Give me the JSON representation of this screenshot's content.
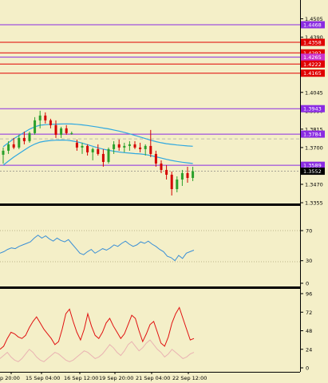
{
  "colors": {
    "background": "#f4efc8",
    "axis": "#000000",
    "bull": "#2aa02a",
    "bear": "#d40000",
    "envelope": "#2fa8e0",
    "oscillator1": "#3a8fd6",
    "oscillator2": "#e01010",
    "oscillator2_faint": "#e9b2b2"
  },
  "price_axis": {
    "ticks": [
      "1.4505",
      "1.4390",
      "1.4275",
      "1.4160",
      "1.4045",
      "1.3930",
      "1.3815",
      "1.3700",
      "1.3585",
      "1.3470",
      "1.3355"
    ],
    "levels": [
      {
        "label": "1.4468",
        "value": 1.4468,
        "color": "#8a2be2",
        "badge": "#8a2be2"
      },
      {
        "label": "1.4358",
        "value": 1.4358,
        "color": "#e00000",
        "badge": "#e00000"
      },
      {
        "label": "1.4292",
        "value": 1.4292,
        "color": "#e00000",
        "badge": "#e00000"
      },
      {
        "label": "1.4265",
        "value": 1.4265,
        "color": "#8a2be2",
        "badge": "#cc33cc"
      },
      {
        "label": "1.4222",
        "value": 1.4222,
        "color": "#e00000",
        "badge": "#e00000"
      },
      {
        "label": "1.4165",
        "value": 1.4165,
        "color": "#e00000",
        "badge": "#e00000"
      },
      {
        "label": "1.3943",
        "value": 1.3943,
        "color": "#8a2be2",
        "badge": "#8a2be2"
      },
      {
        "label": "1.3784",
        "value": 1.3784,
        "color": "#8a2be2",
        "badge": "#8a2be2"
      },
      {
        "label": "1.3589",
        "value": 1.3589,
        "color": "#8a2be2",
        "badge": "#8a2be2"
      },
      {
        "label": "1.3552",
        "value": 1.3552,
        "color": "#000000",
        "badge": "#000000"
      }
    ]
  },
  "osc1_axis": {
    "ticks": [
      "70",
      "30",
      "0"
    ]
  },
  "osc2_axis": {
    "ticks": [
      "96",
      "72",
      "48",
      "24",
      "0"
    ]
  },
  "time_axis": {
    "labels": [
      "p 20:00",
      "15 Sep 04:00",
      "16 Sep 12:00",
      "19 Sep 20:00",
      "21 Sep 04:00",
      "22 Sep 12:00"
    ]
  },
  "chart_data": {
    "type": "candlestick",
    "instrument_panel": {
      "candles": [
        {
          "o": 1.3655,
          "h": 1.37,
          "l": 1.36,
          "c": 1.368
        },
        {
          "o": 1.368,
          "h": 1.374,
          "l": 1.366,
          "c": 1.372
        },
        {
          "o": 1.372,
          "h": 1.376,
          "l": 1.369,
          "c": 1.37
        },
        {
          "o": 1.37,
          "h": 1.378,
          "l": 1.369,
          "c": 1.376
        },
        {
          "o": 1.376,
          "h": 1.38,
          "l": 1.372,
          "c": 1.374
        },
        {
          "o": 1.374,
          "h": 1.38,
          "l": 1.373,
          "c": 1.379
        },
        {
          "o": 1.379,
          "h": 1.389,
          "l": 1.378,
          "c": 1.387
        },
        {
          "o": 1.387,
          "h": 1.393,
          "l": 1.382,
          "c": 1.39
        },
        {
          "o": 1.39,
          "h": 1.392,
          "l": 1.385,
          "c": 1.387
        },
        {
          "o": 1.387,
          "h": 1.388,
          "l": 1.382,
          "c": 1.384
        },
        {
          "o": 1.384,
          "h": 1.387,
          "l": 1.376,
          "c": 1.378
        },
        {
          "o": 1.378,
          "h": 1.383,
          "l": 1.376,
          "c": 1.382
        },
        {
          "o": 1.382,
          "h": 1.384,
          "l": 1.378,
          "c": 1.379
        },
        {
          "o": 1.379,
          "h": 1.38,
          "l": 1.378,
          "c": 1.379
        },
        {
          "o": 1.373,
          "h": 1.375,
          "l": 1.368,
          "c": 1.37
        },
        {
          "o": 1.37,
          "h": 1.373,
          "l": 1.366,
          "c": 1.371
        },
        {
          "o": 1.371,
          "h": 1.372,
          "l": 1.365,
          "c": 1.367
        },
        {
          "o": 1.367,
          "h": 1.37,
          "l": 1.362,
          "c": 1.369
        },
        {
          "o": 1.369,
          "h": 1.372,
          "l": 1.365,
          "c": 1.366
        },
        {
          "o": 1.366,
          "h": 1.369,
          "l": 1.358,
          "c": 1.361
        },
        {
          "o": 1.361,
          "h": 1.37,
          "l": 1.36,
          "c": 1.369
        },
        {
          "o": 1.369,
          "h": 1.374,
          "l": 1.366,
          "c": 1.372
        },
        {
          "o": 1.372,
          "h": 1.375,
          "l": 1.368,
          "c": 1.37
        },
        {
          "o": 1.37,
          "h": 1.373,
          "l": 1.367,
          "c": 1.371
        },
        {
          "o": 1.371,
          "h": 1.374,
          "l": 1.368,
          "c": 1.372
        },
        {
          "o": 1.372,
          "h": 1.374,
          "l": 1.369,
          "c": 1.37
        },
        {
          "o": 1.37,
          "h": 1.373,
          "l": 1.367,
          "c": 1.369
        },
        {
          "o": 1.369,
          "h": 1.372,
          "l": 1.365,
          "c": 1.371
        },
        {
          "o": 1.371,
          "h": 1.381,
          "l": 1.364,
          "c": 1.366
        },
        {
          "o": 1.366,
          "h": 1.368,
          "l": 1.358,
          "c": 1.36
        },
        {
          "o": 1.36,
          "h": 1.362,
          "l": 1.354,
          "c": 1.356
        },
        {
          "o": 1.356,
          "h": 1.359,
          "l": 1.35,
          "c": 1.353
        },
        {
          "o": 1.353,
          "h": 1.355,
          "l": 1.34,
          "c": 1.344
        },
        {
          "o": 1.344,
          "h": 1.352,
          "l": 1.342,
          "c": 1.35
        },
        {
          "o": 1.35,
          "h": 1.356,
          "l": 1.346,
          "c": 1.354
        },
        {
          "o": 1.354,
          "h": 1.358,
          "l": 1.348,
          "c": 1.351
        },
        {
          "o": 1.351,
          "h": 1.358,
          "l": 1.349,
          "c": 1.3552
        }
      ],
      "envelope_upper": [
        1.3705,
        1.373,
        1.3755,
        1.3775,
        1.3795,
        1.3815,
        1.383,
        1.384,
        1.3843,
        1.3845,
        1.3846,
        1.3847,
        1.3848,
        1.3847,
        1.3845,
        1.3842,
        1.3838,
        1.3833,
        1.3828,
        1.3822,
        1.3817,
        1.381,
        1.3803,
        1.3795,
        1.3786,
        1.3776,
        1.3766,
        1.3756,
        1.3746,
        1.3737,
        1.373,
        1.3724,
        1.372,
        1.3716,
        1.3713,
        1.371,
        1.3708
      ],
      "envelope_lower": [
        1.359,
        1.3615,
        1.364,
        1.3662,
        1.3684,
        1.3705,
        1.3722,
        1.3734,
        1.374,
        1.3744,
        1.3746,
        1.3747,
        1.3746,
        1.3742,
        1.3736,
        1.3728,
        1.3718,
        1.3708,
        1.3698,
        1.369,
        1.3683,
        1.3677,
        1.3672,
        1.3668,
        1.3665,
        1.3662,
        1.366,
        1.3656,
        1.365,
        1.3642,
        1.3634,
        1.3626,
        1.3619,
        1.3613,
        1.3608,
        1.3604,
        1.36
      ]
    },
    "oscillator1": {
      "ylim": [
        0,
        100
      ],
      "values": [
        40,
        42,
        45,
        47,
        46,
        49,
        51,
        53,
        55,
        60,
        64,
        60,
        63,
        59,
        56,
        60,
        57,
        55,
        58,
        52,
        46,
        40,
        38,
        42,
        45,
        40,
        43,
        46,
        44,
        47,
        51,
        49,
        53,
        56,
        52,
        49,
        51,
        55,
        53,
        56,
        52,
        49,
        45,
        42,
        36,
        34,
        30,
        37,
        33,
        40,
        42,
        44
      ]
    },
    "oscillator2": {
      "ylim": [
        0,
        96
      ],
      "values": [
        24,
        28,
        38,
        46,
        44,
        40,
        38,
        42,
        52,
        60,
        66,
        58,
        50,
        44,
        38,
        30,
        34,
        50,
        70,
        76,
        60,
        46,
        36,
        50,
        70,
        54,
        42,
        38,
        46,
        58,
        64,
        54,
        46,
        38,
        44,
        56,
        68,
        64,
        48,
        34,
        44,
        56,
        60,
        46,
        32,
        28,
        40,
        58,
        70,
        78,
        64,
        50,
        36,
        38
      ],
      "faint_values": [
        12,
        16,
        20,
        14,
        10,
        8,
        12,
        18,
        24,
        20,
        14,
        10,
        8,
        12,
        16,
        20,
        18,
        14,
        10,
        8,
        10,
        14,
        18,
        22,
        20,
        16,
        12,
        14,
        18,
        24,
        30,
        26,
        20,
        16,
        22,
        30,
        34,
        28,
        22,
        26,
        32,
        36,
        30,
        24,
        20,
        14,
        18,
        24,
        20,
        16,
        12,
        14,
        18,
        20
      ]
    }
  }
}
